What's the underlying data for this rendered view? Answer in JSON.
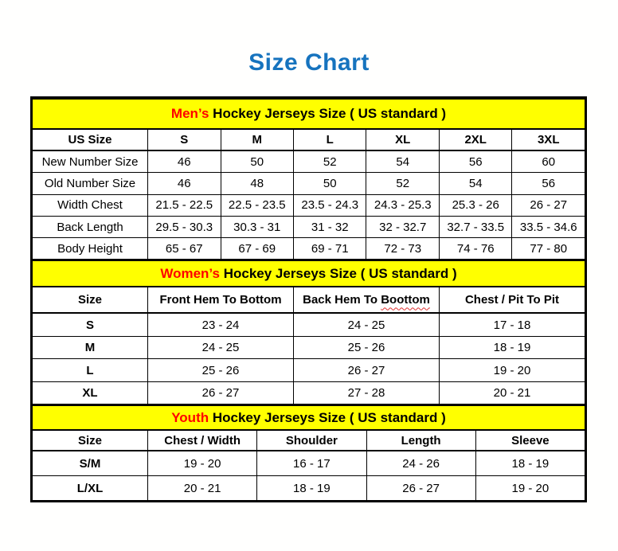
{
  "page": {
    "title": "Size Chart"
  },
  "colors": {
    "title_blue": "#1673BE",
    "band_yellow": "#FFFF00",
    "highlight_red": "#FF0000",
    "border_black": "#000000"
  },
  "chart_data": [
    {
      "type": "table",
      "id": "mens",
      "heading_highlight": "Men’s",
      "heading_rest": " Hockey Jerseys Size ( US standard )",
      "columns": [
        "US Size",
        "S",
        "M",
        "L",
        "XL",
        "2XL",
        "3XL"
      ],
      "rows": [
        [
          "New Number Size",
          "46",
          "50",
          "52",
          "54",
          "56",
          "60"
        ],
        [
          "Old Number Size",
          "46",
          "48",
          "50",
          "52",
          "54",
          "56"
        ],
        [
          "Width Chest",
          "21.5 - 22.5",
          "22.5 - 23.5",
          "23.5 - 24.3",
          "24.3 - 25.3",
          "25.3 - 26",
          "26 - 27"
        ],
        [
          "Back Length",
          "29.5 - 30.3",
          "30.3 - 31",
          "31 - 32",
          "32 - 32.7",
          "32.7 - 33.5",
          "33.5 - 34.6"
        ],
        [
          "Body Height",
          "65 - 67",
          "67 - 69",
          "69 - 71",
          "72 - 73",
          "74 - 76",
          "77 - 80"
        ]
      ],
      "row_labels_bold": false,
      "label_col_pct": 20.9
    },
    {
      "type": "table",
      "id": "womens",
      "heading_highlight": "Women’s",
      "heading_rest": " Hockey Jerseys Size ( US standard )",
      "columns": [
        "Size",
        "Front Hem To Bottom",
        "Back Hem To Boottom",
        "Chest / Pit To Pit"
      ],
      "misspelling": {
        "column_index": 2,
        "word": "Boottom"
      },
      "rows": [
        [
          "S",
          "23 - 24",
          "24 - 25",
          "17 - 18"
        ],
        [
          "M",
          "24 - 25",
          "25 - 26",
          "18 - 19"
        ],
        [
          "L",
          "25 - 26",
          "26 - 27",
          "19 - 20"
        ],
        [
          "XL",
          "26 - 27",
          "27 - 28",
          "20 - 21"
        ]
      ],
      "row_labels_bold": true,
      "label_col_pct": 20.9
    },
    {
      "type": "table",
      "id": "youth",
      "heading_highlight": "Youth",
      "heading_rest": " Hockey Jerseys Size ( US standard )",
      "columns": [
        "Size",
        "Chest / Width",
        "Shoulder",
        "Length",
        "Sleeve"
      ],
      "rows": [
        [
          "S/M",
          "19 - 20",
          "16 - 17",
          "24 - 26",
          "18 - 19"
        ],
        [
          "L/XL",
          "20 - 21",
          "18 - 19",
          "26 - 27",
          "19 - 20"
        ]
      ],
      "row_labels_bold": true,
      "label_col_pct": 20.9
    }
  ]
}
